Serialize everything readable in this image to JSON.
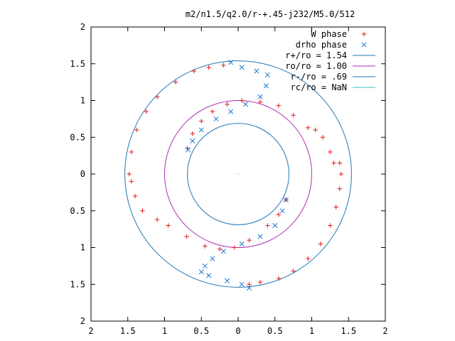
{
  "chart_data": {
    "type": "scatter",
    "title": "m2/n1.5/q2.0/r-+.45-j232/M5.0/512",
    "xlabel": "",
    "ylabel": "",
    "xlim": [
      -2,
      2
    ],
    "ylim": [
      -2,
      2
    ],
    "x_tick_values": [
      -2,
      -1.5,
      -1,
      -0.5,
      0,
      0.5,
      1,
      1.5,
      2
    ],
    "x_tick_labels": [
      "2",
      "1.5",
      "1",
      "0.5",
      "0",
      "0.5",
      "1",
      "1.5",
      "2"
    ],
    "y_tick_values": [
      2,
      1.5,
      1,
      0.5,
      0,
      -0.5,
      -1,
      -1.5,
      -2
    ],
    "y_tick_labels": [
      "2",
      "1.5",
      "1",
      "0.5",
      "0",
      "0.5",
      "1",
      "1.5",
      "2"
    ],
    "grid": false,
    "legend_position": "top-right",
    "legend": [
      {
        "label": "W phase",
        "marker": "+",
        "color": "#e41a1c"
      },
      {
        "label": "drho phase",
        "marker": "x",
        "color": "#1f77d4"
      },
      {
        "label": "r+/ro = 1.54",
        "line": true,
        "color": "#1f77b4"
      },
      {
        "label": "ro/ro = 1.00",
        "line": true,
        "color": "#b02fb0"
      },
      {
        "label": "r-/ro = .69",
        "line": true,
        "color": "#1f77b4"
      },
      {
        "label": "rc/ro = NaN",
        "line": true,
        "color": "#2ec4c4"
      }
    ],
    "circles": [
      {
        "name": "r+/ro",
        "radius": 1.54,
        "color": "#1f77b4"
      },
      {
        "name": "ro/ro",
        "radius": 1.0,
        "color": "#b02fb0"
      },
      {
        "name": "r-/ro",
        "radius": 0.69,
        "color": "#1f77b4"
      }
    ],
    "series": [
      {
        "name": "W phase",
        "color": "#e41a1c",
        "marker": "+",
        "points": [
          [
            -0.69,
            0.35
          ],
          [
            -0.62,
            0.55
          ],
          [
            -0.5,
            0.72
          ],
          [
            -0.35,
            0.85
          ],
          [
            -0.15,
            0.95
          ],
          [
            0.05,
            1.0
          ],
          [
            0.3,
            0.98
          ],
          [
            0.55,
            0.93
          ],
          [
            0.75,
            0.8
          ],
          [
            0.95,
            0.63
          ],
          [
            1.05,
            0.6
          ],
          [
            1.15,
            0.5
          ],
          [
            1.25,
            0.3
          ],
          [
            1.3,
            0.15
          ],
          [
            1.38,
            0.15
          ],
          [
            1.4,
            0.0
          ],
          [
            1.38,
            -0.2
          ],
          [
            1.33,
            -0.45
          ],
          [
            1.25,
            -0.7
          ],
          [
            1.12,
            -0.95
          ],
          [
            0.95,
            -1.15
          ],
          [
            0.75,
            -1.32
          ],
          [
            0.55,
            -1.42
          ],
          [
            0.3,
            -1.47
          ],
          [
            0.15,
            -1.5
          ],
          [
            -0.2,
            1.48
          ],
          [
            -0.4,
            1.45
          ],
          [
            -0.6,
            1.4
          ],
          [
            -0.85,
            1.25
          ],
          [
            -1.1,
            1.05
          ],
          [
            -1.25,
            0.85
          ],
          [
            -1.38,
            0.6
          ],
          [
            -1.45,
            0.3
          ],
          [
            -1.48,
            0.0
          ],
          [
            -1.45,
            -0.1
          ],
          [
            -1.4,
            -0.3
          ],
          [
            -1.3,
            -0.5
          ],
          [
            -1.1,
            -0.62
          ],
          [
            -0.95,
            -0.7
          ],
          [
            -0.7,
            -0.85
          ],
          [
            -0.45,
            -0.98
          ],
          [
            -0.25,
            -1.02
          ],
          [
            -0.05,
            -1.0
          ],
          [
            0.15,
            -0.9
          ],
          [
            0.4,
            -0.7
          ],
          [
            0.55,
            -0.55
          ],
          [
            0.65,
            -0.35
          ]
        ]
      },
      {
        "name": "drho phase",
        "color": "#1f77d4",
        "marker": "x",
        "points": [
          [
            -0.1,
            1.52
          ],
          [
            0.05,
            1.45
          ],
          [
            0.25,
            1.4
          ],
          [
            0.4,
            1.35
          ],
          [
            0.38,
            1.2
          ],
          [
            0.3,
            1.05
          ],
          [
            0.1,
            0.95
          ],
          [
            -0.1,
            0.85
          ],
          [
            -0.3,
            0.75
          ],
          [
            -0.5,
            0.6
          ],
          [
            -0.62,
            0.45
          ],
          [
            -0.68,
            0.33
          ],
          [
            0.65,
            -0.35
          ],
          [
            0.6,
            -0.5
          ],
          [
            0.5,
            -0.7
          ],
          [
            0.3,
            -0.85
          ],
          [
            0.05,
            -0.95
          ],
          [
            -0.2,
            -1.05
          ],
          [
            -0.35,
            -1.15
          ],
          [
            -0.45,
            -1.25
          ],
          [
            -0.5,
            -1.33
          ],
          [
            -0.4,
            -1.38
          ],
          [
            -0.15,
            -1.45
          ],
          [
            0.05,
            -1.5
          ],
          [
            0.15,
            -1.55
          ]
        ]
      }
    ]
  }
}
